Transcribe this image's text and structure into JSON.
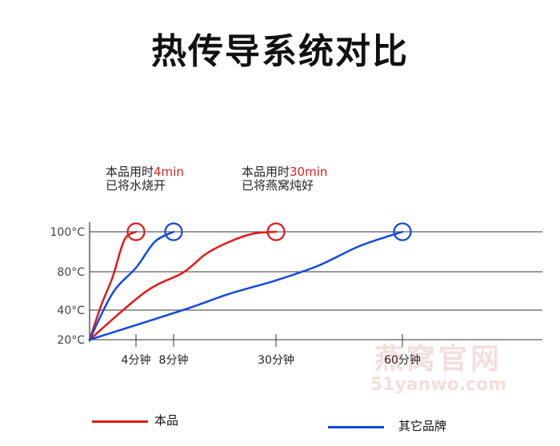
{
  "title": "热传导系统对比",
  "annotations": [
    {
      "prefix": "本品用时",
      "time": "4min",
      "line2": "已将水烧开"
    },
    {
      "prefix": "本品用时",
      "time": "30min",
      "line2": "已将燕窝炖好"
    }
  ],
  "watermark": {
    "line1": "燕窝官网",
    "line2": "51yanwo.com"
  },
  "colors": {
    "product": "#e31818",
    "other": "#1248e0",
    "grid": "#333333",
    "highlight": "#e02020"
  },
  "chart_data": {
    "type": "line",
    "x_unit": "分钟",
    "y_ticks": [
      {
        "value": 20,
        "label": "20°C"
      },
      {
        "value": 40,
        "label": "40°C"
      },
      {
        "value": 80,
        "label": "80°C"
      },
      {
        "value": 100,
        "label": "100°C"
      }
    ],
    "x_ticks": [
      {
        "value": 4,
        "label": "4分钟"
      },
      {
        "value": 8,
        "label": "8分钟"
      },
      {
        "value": 30,
        "label": "30分钟"
      },
      {
        "value": 60,
        "label": "60分钟"
      }
    ],
    "series": [
      {
        "name": "本品",
        "color": "#e31818",
        "x": [
          0,
          1,
          2,
          3,
          4
        ],
        "y": [
          20,
          45,
          75,
          96,
          100
        ]
      },
      {
        "name": "其它品牌",
        "color": "#1248e0",
        "x": [
          0,
          2,
          4,
          6,
          8
        ],
        "y": [
          20,
          58,
          82,
          95,
          100
        ]
      },
      {
        "name": "本品",
        "color": "#e31818",
        "x": [
          0,
          5,
          10,
          15,
          20,
          25,
          30
        ],
        "y": [
          20,
          59,
          79,
          89,
          95,
          99,
          100
        ]
      },
      {
        "name": "其它品牌",
        "color": "#1248e0",
        "x": [
          0,
          10,
          20,
          30,
          40,
          50,
          60
        ],
        "y": [
          20,
          40,
          57,
          71,
          83,
          93,
          100
        ]
      }
    ],
    "markers": [
      {
        "x": 4,
        "y": 100,
        "color": "#e31818"
      },
      {
        "x": 8,
        "y": 100,
        "color": "#1248e0"
      },
      {
        "x": 30,
        "y": 100,
        "color": "#e31818"
      },
      {
        "x": 60,
        "y": 100,
        "color": "#1248e0"
      }
    ],
    "legend": [
      {
        "name": "本品",
        "color": "#e31818"
      },
      {
        "name": "其它品牌",
        "color": "#1248e0"
      }
    ]
  }
}
